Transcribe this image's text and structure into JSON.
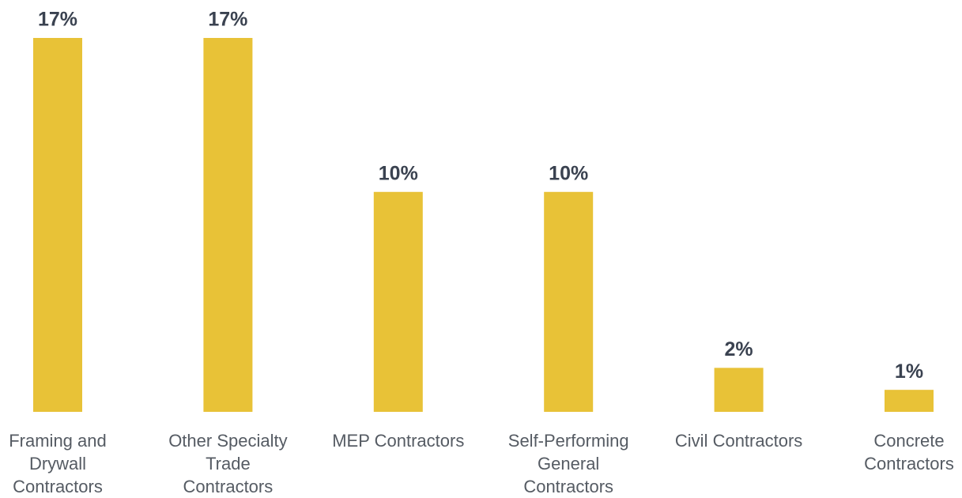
{
  "chart_data": {
    "type": "bar",
    "categories": [
      "Framing and Drywall Contractors",
      "Other Specialty Trade Contractors",
      "MEP Contractors",
      "Self-Performing General Contractors",
      "Civil Contractors",
      "Concrete Contractors"
    ],
    "values": [
      17,
      17,
      10,
      10,
      2,
      1
    ],
    "value_labels": [
      "17%",
      "17%",
      "10%",
      "10%",
      "2%",
      "1%"
    ],
    "color": "#e8c237",
    "ylim": [
      0,
      17
    ]
  }
}
